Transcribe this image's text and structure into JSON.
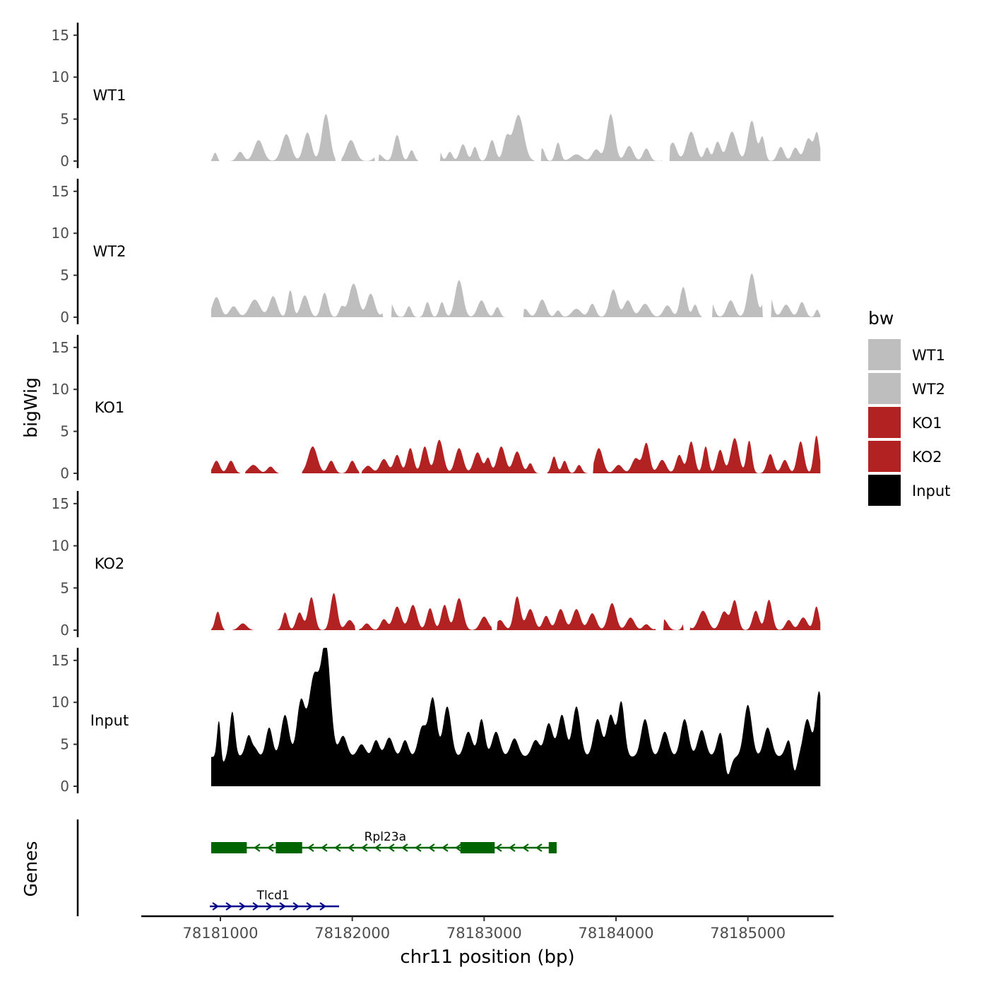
{
  "chart_data": {
    "type": "area",
    "xlabel": "chr11 position (bp)",
    "ylabel": "bigWig",
    "gene_track_label": "Genes",
    "xlim": [
      78180400,
      78185650
    ],
    "data_range": [
      78180930,
      78185550
    ],
    "x_ticks": [
      78181000,
      78182000,
      78183000,
      78184000,
      78185000
    ],
    "x_tick_labels": [
      "78181000",
      "78182000",
      "78183000",
      "78184000",
      "78185000"
    ],
    "ylim": [
      0,
      16.5
    ],
    "y_ticks": [
      0,
      5,
      10,
      15
    ],
    "y_tick_labels": [
      "0",
      "5",
      "10",
      "15"
    ],
    "legend": {
      "title": "bw",
      "position": "right",
      "entries": [
        {
          "label": "WT1",
          "color": "#BEBEBE"
        },
        {
          "label": "WT2",
          "color": "#BEBEBE"
        },
        {
          "label": "KO1",
          "color": "#B22222"
        },
        {
          "label": "KO2",
          "color": "#B22222"
        },
        {
          "label": "Input",
          "color": "#000000"
        }
      ]
    },
    "series": [
      {
        "name": "WT1",
        "color": "#BEBEBE",
        "peaks": [
          [
            78180960,
            1.0,
            15
          ],
          [
            78181150,
            1.1,
            25
          ],
          [
            78181290,
            2.5,
            35
          ],
          [
            78181500,
            3.2,
            35
          ],
          [
            78181660,
            3.4,
            30
          ],
          [
            78181800,
            5.6,
            30
          ],
          [
            78181990,
            2.5,
            35
          ],
          [
            78182200,
            0.8,
            30
          ],
          [
            78182340,
            3.1,
            25
          ],
          [
            78182450,
            1.3,
            20
          ],
          [
            78182640,
            2.2,
            25
          ],
          [
            78182740,
            1.1,
            20
          ],
          [
            78182840,
            2.0,
            25
          ],
          [
            78182930,
            1.7,
            20
          ],
          [
            78183060,
            2.5,
            25
          ],
          [
            78183170,
            2.7,
            25
          ],
          [
            78183260,
            5.5,
            40
          ],
          [
            78183440,
            1.5,
            20
          ],
          [
            78183560,
            2.2,
            20
          ],
          [
            78183700,
            0.8,
            40
          ],
          [
            78183850,
            1.4,
            30
          ],
          [
            78183960,
            5.6,
            30
          ],
          [
            78184100,
            1.8,
            30
          ],
          [
            78184230,
            1.5,
            25
          ],
          [
            78184430,
            2.2,
            30
          ],
          [
            78184570,
            3.5,
            35
          ],
          [
            78184690,
            1.6,
            20
          ],
          [
            78184770,
            2.3,
            25
          ],
          [
            78184880,
            3.5,
            35
          ],
          [
            78185030,
            4.8,
            30
          ],
          [
            78185110,
            2.8,
            20
          ],
          [
            78185250,
            1.7,
            25
          ],
          [
            78185360,
            1.6,
            25
          ],
          [
            78185460,
            2.7,
            30
          ],
          [
            78185525,
            3.2,
            20
          ]
        ],
        "gaps": [
          [
            78180990,
            78181060
          ],
          [
            78181870,
            78181920
          ],
          [
            78182170,
            78182200
          ],
          [
            78182500,
            78182670
          ],
          [
            78183380,
            78183430
          ],
          [
            78184350,
            78184410
          ]
        ]
      },
      {
        "name": "WT2",
        "color": "#BEBEBE",
        "peaks": [
          [
            78180970,
            2.4,
            30
          ],
          [
            78181100,
            1.3,
            30
          ],
          [
            78181260,
            2.1,
            40
          ],
          [
            78181400,
            2.5,
            30
          ],
          [
            78181530,
            3.2,
            20
          ],
          [
            78181640,
            2.6,
            30
          ],
          [
            78181790,
            2.9,
            25
          ],
          [
            78181920,
            1.2,
            20
          ],
          [
            78182010,
            4.0,
            35
          ],
          [
            78182140,
            2.8,
            30
          ],
          [
            78182280,
            2.0,
            30
          ],
          [
            78182430,
            1.3,
            20
          ],
          [
            78182570,
            1.8,
            20
          ],
          [
            78182680,
            1.8,
            20
          ],
          [
            78182810,
            4.4,
            30
          ],
          [
            78182980,
            2.0,
            30
          ],
          [
            78183100,
            1.2,
            20
          ],
          [
            78183310,
            1.0,
            25
          ],
          [
            78183440,
            2.1,
            30
          ],
          [
            78183560,
            0.8,
            20
          ],
          [
            78183700,
            1.0,
            35
          ],
          [
            78183820,
            1.6,
            25
          ],
          [
            78183980,
            3.3,
            30
          ],
          [
            78184090,
            2.0,
            30
          ],
          [
            78184220,
            1.6,
            35
          ],
          [
            78184390,
            1.4,
            30
          ],
          [
            78184510,
            3.6,
            25
          ],
          [
            78184600,
            1.5,
            20
          ],
          [
            78184720,
            1.8,
            25
          ],
          [
            78184870,
            2.0,
            30
          ],
          [
            78185030,
            5.2,
            30
          ],
          [
            78185150,
            3.6,
            30
          ],
          [
            78185290,
            1.5,
            30
          ],
          [
            78185410,
            1.8,
            25
          ],
          [
            78185525,
            0.9,
            15
          ]
        ],
        "gaps": [
          [
            78182230,
            78182300
          ],
          [
            78183230,
            78183300
          ],
          [
            78184650,
            78184730
          ],
          [
            78185110,
            78185180
          ]
        ]
      },
      {
        "name": "KO1",
        "color": "#B22222",
        "peaks": [
          [
            78180970,
            1.5,
            25
          ],
          [
            78181080,
            1.5,
            25
          ],
          [
            78181250,
            1.0,
            35
          ],
          [
            78181380,
            0.8,
            25
          ],
          [
            78181700,
            3.2,
            35
          ],
          [
            78181840,
            1.5,
            25
          ],
          [
            78182000,
            1.5,
            25
          ],
          [
            78182120,
            0.9,
            30
          ],
          [
            78182240,
            1.7,
            30
          ],
          [
            78182340,
            2.2,
            25
          ],
          [
            78182440,
            3.0,
            25
          ],
          [
            78182550,
            3.2,
            25
          ],
          [
            78182660,
            4.0,
            30
          ],
          [
            78182810,
            3.0,
            30
          ],
          [
            78182950,
            2.5,
            30
          ],
          [
            78183030,
            1.8,
            20
          ],
          [
            78183130,
            3.2,
            30
          ],
          [
            78183250,
            2.6,
            30
          ],
          [
            78183350,
            1.2,
            20
          ],
          [
            78183530,
            2.0,
            20
          ],
          [
            78183610,
            1.5,
            20
          ],
          [
            78183720,
            1.0,
            20
          ],
          [
            78183870,
            3.0,
            30
          ],
          [
            78184020,
            1.0,
            30
          ],
          [
            78184150,
            1.8,
            30
          ],
          [
            78184230,
            3.6,
            25
          ],
          [
            78184350,
            1.6,
            30
          ],
          [
            78184480,
            2.2,
            25
          ],
          [
            78184570,
            3.8,
            25
          ],
          [
            78184680,
            3.2,
            20
          ],
          [
            78184790,
            2.8,
            25
          ],
          [
            78184900,
            4.2,
            30
          ],
          [
            78185010,
            3.9,
            20
          ],
          [
            78185170,
            2.3,
            25
          ],
          [
            78185280,
            1.6,
            25
          ],
          [
            78185400,
            3.8,
            25
          ],
          [
            78185520,
            4.5,
            20
          ]
        ],
        "gaps": [
          [
            78181150,
            78181190
          ],
          [
            78181440,
            78181620
          ],
          [
            78182050,
            78182070
          ],
          [
            78183420,
            78183480
          ],
          [
            78183780,
            78183830
          ]
        ]
      },
      {
        "name": "KO2",
        "color": "#B22222",
        "peaks": [
          [
            78180980,
            2.2,
            20
          ],
          [
            78181170,
            0.8,
            30
          ],
          [
            78181490,
            2.1,
            20
          ],
          [
            78181600,
            2.1,
            25
          ],
          [
            78181690,
            3.9,
            25
          ],
          [
            78181860,
            4.4,
            25
          ],
          [
            78181980,
            1.2,
            30
          ],
          [
            78182110,
            0.8,
            25
          ],
          [
            78182240,
            1.3,
            25
          ],
          [
            78182340,
            2.8,
            30
          ],
          [
            78182460,
            3.0,
            30
          ],
          [
            78182590,
            2.6,
            25
          ],
          [
            78182700,
            3.0,
            25
          ],
          [
            78182810,
            3.8,
            30
          ],
          [
            78183000,
            1.6,
            30
          ],
          [
            78183120,
            1.2,
            30
          ],
          [
            78183250,
            4.0,
            25
          ],
          [
            78183350,
            2.5,
            30
          ],
          [
            78183470,
            1.7,
            25
          ],
          [
            78183580,
            2.5,
            30
          ],
          [
            78183700,
            2.5,
            30
          ],
          [
            78183820,
            2.0,
            30
          ],
          [
            78183970,
            3.2,
            30
          ],
          [
            78184110,
            1.5,
            30
          ],
          [
            78184230,
            0.7,
            25
          ],
          [
            78184360,
            1.3,
            30
          ],
          [
            78184530,
            1.3,
            20
          ],
          [
            78184660,
            2.3,
            35
          ],
          [
            78184820,
            2.2,
            30
          ],
          [
            78184900,
            3.5,
            25
          ],
          [
            78185060,
            2.3,
            25
          ],
          [
            78185160,
            3.6,
            25
          ],
          [
            78185310,
            1.2,
            25
          ],
          [
            78185420,
            1.5,
            30
          ],
          [
            78185520,
            2.8,
            20
          ]
        ],
        "gaps": [
          [
            78181030,
            78181090
          ],
          [
            78181250,
            78181410
          ],
          [
            78182020,
            78182050
          ],
          [
            78183060,
            78183100
          ],
          [
            78184510,
            78184560
          ],
          [
            78184300,
            78184360
          ]
        ]
      },
      {
        "name": "Input",
        "color": "#000000",
        "baseline": 3.5,
        "peaks": [
          [
            78180990,
            6.2,
            15
          ],
          [
            78181090,
            5.4,
            20
          ],
          [
            78181230,
            4.0,
            30
          ],
          [
            78181370,
            3.5,
            25
          ],
          [
            78181490,
            5.0,
            30
          ],
          [
            78181610,
            6.5,
            30
          ],
          [
            78181710,
            9.5,
            40
          ],
          [
            78181800,
            13.0,
            35
          ],
          [
            78181930,
            2.5,
            30
          ],
          [
            78182070,
            1.5,
            30
          ],
          [
            78182180,
            2.0,
            25
          ],
          [
            78182280,
            2.3,
            30
          ],
          [
            78182400,
            2.0,
            25
          ],
          [
            78182530,
            3.5,
            30
          ],
          [
            78182610,
            7.0,
            30
          ],
          [
            78182720,
            6.0,
            30
          ],
          [
            78182880,
            3.0,
            30
          ],
          [
            78182980,
            4.5,
            25
          ],
          [
            78183090,
            3.0,
            30
          ],
          [
            78183230,
            2.2,
            30
          ],
          [
            78183390,
            2.0,
            30
          ],
          [
            78183490,
            4.0,
            30
          ],
          [
            78183590,
            5.0,
            30
          ],
          [
            78183700,
            6.0,
            30
          ],
          [
            78183860,
            4.5,
            30
          ],
          [
            78183960,
            5.0,
            30
          ],
          [
            78184040,
            6.5,
            25
          ],
          [
            78184220,
            4.5,
            30
          ],
          [
            78184370,
            3.0,
            30
          ],
          [
            78184520,
            4.5,
            30
          ],
          [
            78184650,
            3.2,
            30
          ],
          [
            78184800,
            3.5,
            30
          ],
          [
            78185000,
            6.2,
            30
          ],
          [
            78185150,
            3.5,
            30
          ],
          [
            78185320,
            2.5,
            30
          ],
          [
            78185450,
            4.5,
            30
          ],
          [
            78185540,
            7.8,
            25
          ]
        ],
        "dips": [
          [
            78181000,
            2.2,
            20
          ],
          [
            78181240,
            2.0,
            20
          ],
          [
            78184840,
            3.2,
            25
          ],
          [
            78185350,
            3.0,
            20
          ]
        ]
      }
    ],
    "genes": [
      {
        "name": "Rpl23a",
        "strand": "-",
        "color": "#006400",
        "start": 78180930,
        "end": 78183550,
        "exons": [
          [
            78180930,
            78181200
          ],
          [
            78181420,
            78181620
          ],
          [
            78182820,
            78183080
          ],
          [
            78183490,
            78183550
          ]
        ],
        "label_x": 78182250
      },
      {
        "name": "Tlcd1",
        "strand": "+",
        "color": "#00008B",
        "start": 78180920,
        "end": 78181900,
        "exons": [],
        "label_x": 78181400
      }
    ]
  }
}
